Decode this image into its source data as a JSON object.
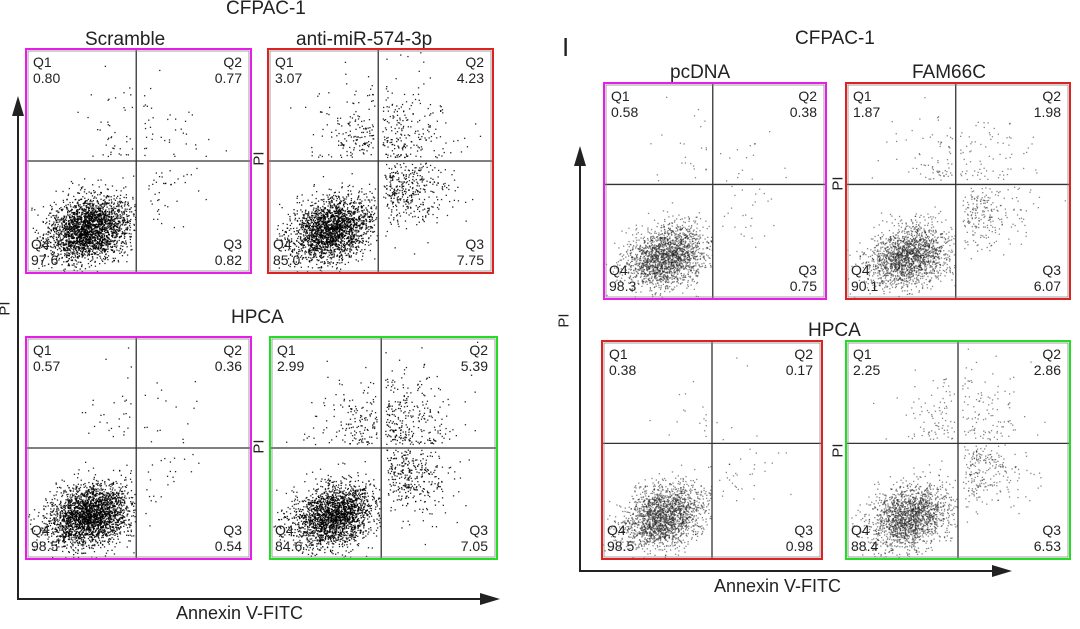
{
  "figure": {
    "left_group": {
      "title": "CFPAC-1",
      "col_labels": [
        "Scramble",
        "anti-miR-574-3p"
      ],
      "row2_title": "HPCA",
      "x_axis_label": "Annexin V-FITC",
      "y_axis_label": "PI",
      "inner_y_label": "PI"
    },
    "right_group": {
      "panel_letter": "I",
      "title": "CFPAC-1",
      "col_labels": [
        "pcDNA",
        "FAM66C"
      ],
      "row2_title": "HPCA",
      "x_axis_label": "Annexin V-FITC",
      "y_axis_label": "PI",
      "inner_y_label": "PI"
    }
  },
  "chart_data": [
    {
      "type": "scatter",
      "group": "left",
      "cell_line": "CFPAC-1",
      "condition": "Scramble",
      "frame_color": "#e81ee8",
      "quadrants": {
        "Q1": "0.80",
        "Q2": "0.77",
        "Q3": "0.82",
        "Q4": "97.6"
      }
    },
    {
      "type": "scatter",
      "group": "left",
      "cell_line": "CFPAC-1",
      "condition": "anti-miR-574-3p",
      "frame_color": "#dd2222",
      "quadrants": {
        "Q1": "3.07",
        "Q2": "4.23",
        "Q3": "7.75",
        "Q4": "85.0"
      }
    },
    {
      "type": "scatter",
      "group": "left",
      "cell_line": "HPCA",
      "condition": "Scramble",
      "frame_color": "#e81ee8",
      "quadrants": {
        "Q1": "0.57",
        "Q2": "0.36",
        "Q3": "0.54",
        "Q4": "98.5"
      }
    },
    {
      "type": "scatter",
      "group": "left",
      "cell_line": "HPCA",
      "condition": "anti-miR-574-3p",
      "frame_color": "#22dd22",
      "quadrants": {
        "Q1": "2.99",
        "Q2": "5.39",
        "Q3": "7.05",
        "Q4": "84.6"
      }
    },
    {
      "type": "scatter",
      "group": "right",
      "cell_line": "CFPAC-1",
      "condition": "pcDNA",
      "frame_color": "#e81ee8",
      "quadrants": {
        "Q1": "0.58",
        "Q2": "0.38",
        "Q3": "0.75",
        "Q4": "98.3"
      }
    },
    {
      "type": "scatter",
      "group": "right",
      "cell_line": "CFPAC-1",
      "condition": "FAM66C",
      "frame_color": "#dd2222",
      "quadrants": {
        "Q1": "1.87",
        "Q2": "1.98",
        "Q3": "6.07",
        "Q4": "90.1"
      }
    },
    {
      "type": "scatter",
      "group": "right",
      "cell_line": "HPCA",
      "condition": "pcDNA",
      "frame_color": "#dd2222",
      "quadrants": {
        "Q1": "0.38",
        "Q2": "0.17",
        "Q3": "0.98",
        "Q4": "98.5"
      }
    },
    {
      "type": "scatter",
      "group": "right",
      "cell_line": "HPCA",
      "condition": "FAM66C",
      "frame_color": "#22dd22",
      "quadrants": {
        "Q1": "2.25",
        "Q2": "2.86",
        "Q3": "6.53",
        "Q4": "88.4"
      }
    }
  ]
}
